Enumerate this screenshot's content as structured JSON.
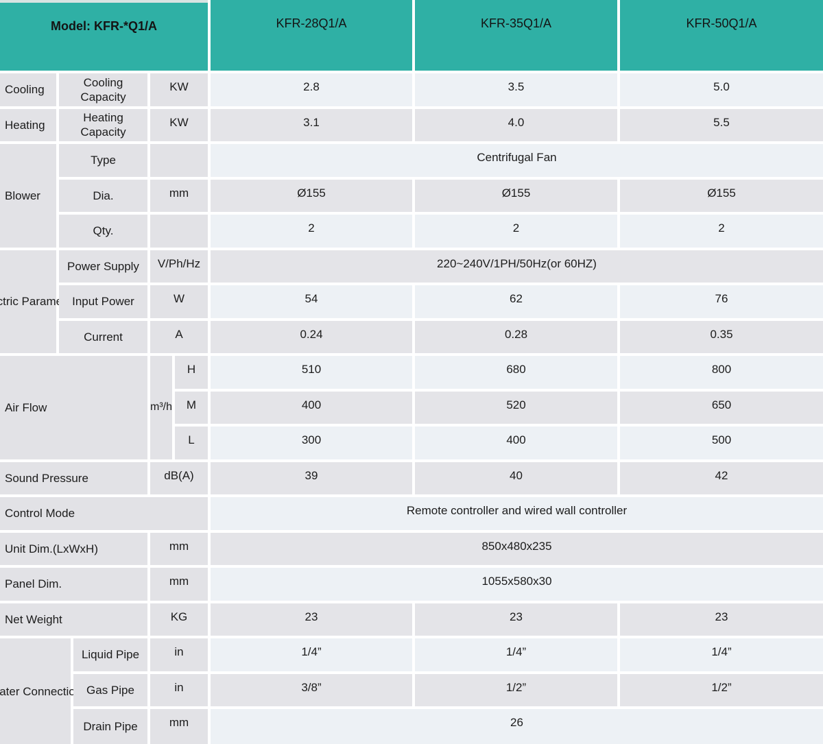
{
  "header": {
    "model": "Model: KFR-*Q1/A",
    "columns": [
      "KFR-28Q1/A",
      "KFR-35Q1/A",
      "KFR-50Q1/A"
    ]
  },
  "colors": {
    "header_teal": "#2fb0a5",
    "label_gray": "#e2e2e6",
    "row_light": "#edf1f5",
    "row_gray": "#e4e4e8",
    "top_strip": "#d8e3e2"
  },
  "rows": {
    "cooling": {
      "label": "Cooling",
      "sublabel": "Cooling\nCapacity",
      "unit": "KW",
      "values": [
        "2.8",
        "3.5",
        "5.0"
      ]
    },
    "heating": {
      "label": "Heating",
      "sublabel": "Heating\nCapacity",
      "unit": "KW",
      "values": [
        "3.1",
        "4.0",
        "5.5"
      ]
    },
    "blower": {
      "label": "Blower",
      "type": {
        "sublabel": "Type",
        "unit": "",
        "value": "Centrifugal Fan"
      },
      "dia": {
        "sublabel": "Dia.",
        "unit": "mm",
        "values": [
          "Ø155",
          "Ø155",
          "Ø155"
        ]
      },
      "qty": {
        "sublabel": "Qty.",
        "unit": "",
        "values": [
          "2",
          "2",
          "2"
        ]
      }
    },
    "electric": {
      "label": "Electric\nParameter",
      "power_supply": {
        "sublabel": "Power Supply",
        "unit": "V/Ph/Hz",
        "value": "220~240V/1PH/50Hz(or 60HZ)"
      },
      "input_power": {
        "sublabel": "Input Power",
        "unit": "W",
        "values": [
          "54",
          "62",
          "76"
        ]
      },
      "current": {
        "sublabel": "Current",
        "unit": "A",
        "values": [
          "0.24",
          "0.28",
          "0.35"
        ]
      }
    },
    "airflow": {
      "label": "Air Flow",
      "unit": "m³/h",
      "h": {
        "sublabel": "H",
        "values": [
          "510",
          "680",
          "800"
        ]
      },
      "m": {
        "sublabel": "M",
        "values": [
          "400",
          "520",
          "650"
        ]
      },
      "l": {
        "sublabel": "L",
        "values": [
          "300",
          "400",
          "500"
        ]
      }
    },
    "sound": {
      "label": "Sound Pressure",
      "unit": "dB(A)",
      "values": [
        "39",
        "40",
        "42"
      ]
    },
    "control": {
      "label": "Control Mode",
      "value": "Remote controller and wired wall controller"
    },
    "unit_dim": {
      "label": "Unit Dim.(LxWxH)",
      "unit": "mm",
      "value": "850x480x235"
    },
    "panel_dim": {
      "label": "Panel Dim.",
      "unit": "mm",
      "value": "1055x580x30"
    },
    "net_weight": {
      "label": "Net Weight",
      "unit": "KG",
      "values": [
        "23",
        "23",
        "23"
      ]
    },
    "water": {
      "label": "Water\nConnection",
      "liquid": {
        "sublabel": "Liquid Pipe",
        "unit": "in",
        "values": [
          "1/4”",
          "1/4”",
          "1/4”"
        ]
      },
      "gas": {
        "sublabel": "Gas Pipe",
        "unit": "in",
        "values": [
          "3/8”",
          "1/2”",
          "1/2”"
        ]
      },
      "drain": {
        "sublabel": "Drain Pipe",
        "unit": "mm",
        "value": "26"
      }
    }
  }
}
